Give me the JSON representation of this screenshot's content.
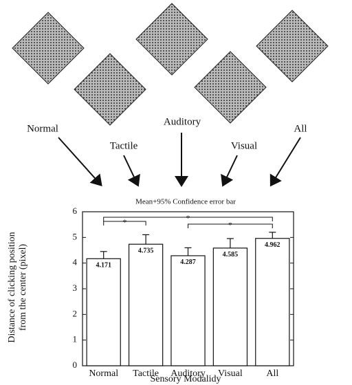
{
  "chart_data": {
    "type": "bar",
    "title": "Mean+95% Confidence error bar",
    "ylabel_lines": [
      "Distance of clicking position",
      "from the center (pixel)"
    ],
    "xlabel": "Sensory Modalidy",
    "categories": [
      "Normal",
      "Tactile",
      "Auditory",
      "Visual",
      "All"
    ],
    "values": [
      4.171,
      4.735,
      4.287,
      4.585,
      4.962
    ],
    "errors": [
      0.28,
      0.37,
      0.31,
      0.37,
      0.24
    ],
    "color": "#ffffff",
    "ylim": [
      0,
      6
    ],
    "yticks": [
      0,
      1,
      2,
      3,
      4,
      5,
      6
    ],
    "annotations": [
      {
        "label": "*"
      },
      {
        "label": "*"
      },
      {
        "label": "*"
      }
    ],
    "panel_labels": [
      "Normal",
      "Tactile",
      "Auditory",
      "Visual",
      "All"
    ]
  }
}
